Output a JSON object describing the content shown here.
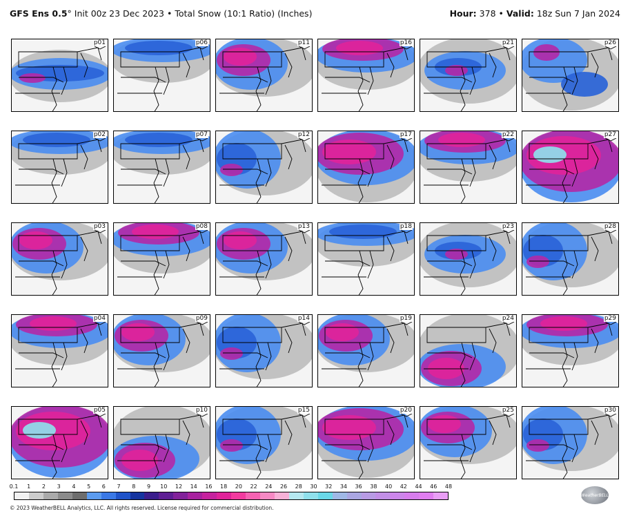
{
  "header": {
    "model": "GFS Ens 0.5",
    "degree": "°",
    "init": "Init 00z 23 Dec 2023",
    "sep": "•",
    "product": "Total Snow (10:1 Ratio) (Inches)",
    "hour_label": "Hour:",
    "hour": "378",
    "valid_label": "Valid:",
    "valid": "18z Sun 7 Jan 2024"
  },
  "panels": [
    {
      "label": "p01",
      "pattern": "blue-band"
    },
    {
      "label": "p06",
      "pattern": "blue-north"
    },
    {
      "label": "p11",
      "pattern": "pink-west"
    },
    {
      "label": "p16",
      "pattern": "pink-north"
    },
    {
      "label": "p21",
      "pattern": "blue-center"
    },
    {
      "label": "p26",
      "pattern": "mixed"
    },
    {
      "label": "p02",
      "pattern": "blue-north"
    },
    {
      "label": "p07",
      "pattern": "blue-north"
    },
    {
      "label": "p12",
      "pattern": "blue-west"
    },
    {
      "label": "p17",
      "pattern": "pink-band"
    },
    {
      "label": "p22",
      "pattern": "pink-north"
    },
    {
      "label": "p27",
      "pattern": "pink-full"
    },
    {
      "label": "p03",
      "pattern": "pink-west"
    },
    {
      "label": "p08",
      "pattern": "pink-north"
    },
    {
      "label": "p13",
      "pattern": "pink-west"
    },
    {
      "label": "p18",
      "pattern": "blue-north"
    },
    {
      "label": "p23",
      "pattern": "blue-center"
    },
    {
      "label": "p28",
      "pattern": "blue-west"
    },
    {
      "label": "p04",
      "pattern": "pink-north"
    },
    {
      "label": "p09",
      "pattern": "pink-west"
    },
    {
      "label": "p14",
      "pattern": "blue-west"
    },
    {
      "label": "p19",
      "pattern": "pink-west"
    },
    {
      "label": "p24",
      "pattern": "pink-south"
    },
    {
      "label": "p29",
      "pattern": "pink-north"
    },
    {
      "label": "p05",
      "pattern": "pink-full"
    },
    {
      "label": "p10",
      "pattern": "pink-south"
    },
    {
      "label": "p15",
      "pattern": "blue-west"
    },
    {
      "label": "p20",
      "pattern": "pink-band"
    },
    {
      "label": "p25",
      "pattern": "pink-west"
    },
    {
      "label": "p30",
      "pattern": "blue-west"
    }
  ],
  "colorbar": {
    "ticks": [
      "0.1",
      "1",
      "2",
      "3",
      "4",
      "5",
      "6",
      "7",
      "8",
      "9",
      "10",
      "12",
      "14",
      "16",
      "18",
      "20",
      "22",
      "24",
      "26",
      "28",
      "30",
      "32",
      "34",
      "36",
      "38",
      "40",
      "42",
      "44",
      "46",
      "48"
    ],
    "colors": [
      "#f2f2f2",
      "#cccccc",
      "#aaaaaa",
      "#8b8b8b",
      "#6d6d6d",
      "#5b9bef",
      "#3a78e6",
      "#1f53c9",
      "#1534a0",
      "#3a1d8c",
      "#5e1e94",
      "#82219a",
      "#a8229f",
      "#c6229e",
      "#e0239a",
      "#f23a9f",
      "#f562b2",
      "#f689c4",
      "#f7b1d7",
      "#b5e8f0",
      "#8fe0ec",
      "#6ad8e8",
      "#9fb8e6",
      "#aaa6e2",
      "#b89be4",
      "#c28fe6",
      "#cc86ea",
      "#d77ded",
      "#e07ef0",
      "#e99ef5"
    ]
  },
  "footer": "© 2023 WeatherBELL Analytics, LLC. All rights reserved. License required for commercial distribution.",
  "logo": "WeatherBELL"
}
